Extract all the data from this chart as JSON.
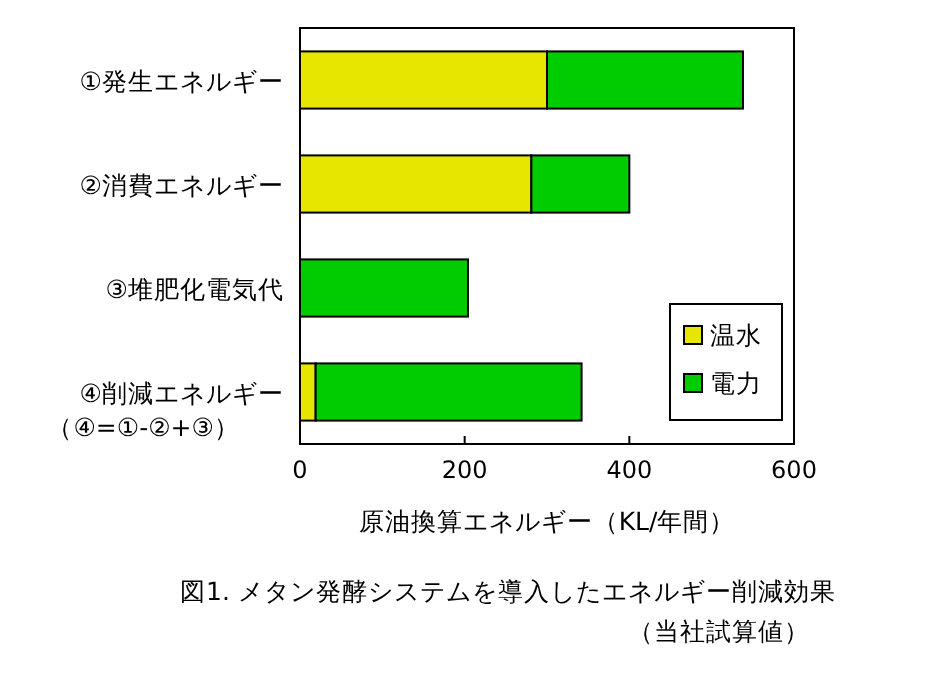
{
  "chart_data": {
    "type": "bar",
    "orientation": "horizontal",
    "stacked": true,
    "categories": [
      "①発生エネルギー",
      "②消費エネルギー",
      "③堆肥化電気代",
      "④削減エネルギー（④=①-②+③）"
    ],
    "series": [
      {
        "name": "温水",
        "color": "#e6e600",
        "values": [
          300,
          281,
          0,
          19
        ]
      },
      {
        "name": "電力",
        "color": "#00cc00",
        "values": [
          238,
          119,
          204,
          323
        ]
      }
    ],
    "xlim": [
      0,
      600
    ],
    "xticks": [
      0,
      200,
      400,
      600
    ],
    "xlabel": "原油換算エネルギー（KL/年間）",
    "legend": "bottom right",
    "grid": false,
    "annotations": [
      "図1. メタン発酵システムを導入したエネルギー削減効果",
      "（当社試算値）"
    ]
  }
}
